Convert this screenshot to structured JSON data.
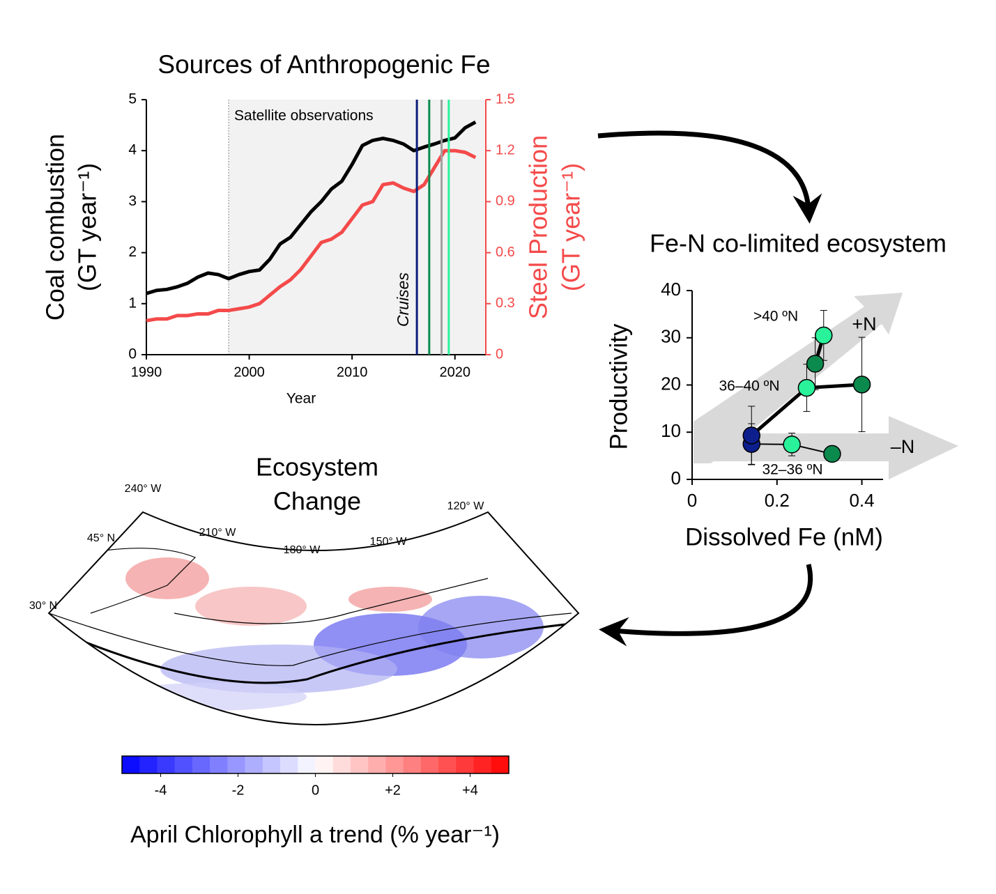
{
  "chart_data": [
    {
      "type": "line",
      "title": "Sources of Anthropogenic Fe",
      "xlabel": "Year",
      "ylabel": [
        "Coal combustion",
        "(GT year⁻¹)"
      ],
      "y2label": [
        "Steel Production",
        "(GT year⁻¹)"
      ],
      "x": [
        1990,
        1991,
        1992,
        1993,
        1994,
        1995,
        1996,
        1997,
        1998,
        1999,
        2000,
        2001,
        2002,
        2003,
        2004,
        2005,
        2006,
        2007,
        2008,
        2009,
        2010,
        2011,
        2012,
        2013,
        2014,
        2015,
        2016,
        2017,
        2018,
        2019,
        2020,
        2021,
        2022
      ],
      "series": [
        {
          "name": "Coal combustion",
          "color": "#000000",
          "axis": "y",
          "values": [
            1.2,
            1.26,
            1.28,
            1.33,
            1.4,
            1.52,
            1.6,
            1.57,
            1.49,
            1.57,
            1.63,
            1.66,
            1.87,
            2.17,
            2.3,
            2.55,
            2.8,
            3.0,
            3.25,
            3.4,
            3.73,
            4.1,
            4.2,
            4.24,
            4.2,
            4.13,
            4.0,
            4.07,
            4.13,
            4.2,
            4.25,
            4.45,
            4.56
          ]
        },
        {
          "name": "Steel Production",
          "color": "#f44a4a",
          "axis": "y2",
          "values": [
            0.2,
            0.21,
            0.21,
            0.23,
            0.23,
            0.24,
            0.24,
            0.26,
            0.26,
            0.27,
            0.28,
            0.3,
            0.35,
            0.4,
            0.44,
            0.5,
            0.58,
            0.66,
            0.68,
            0.72,
            0.8,
            0.88,
            0.9,
            1.0,
            1.01,
            0.98,
            0.96,
            1.0,
            1.1,
            1.2,
            1.2,
            1.19,
            1.16
          ]
        }
      ],
      "xlim": [
        1990,
        2023
      ],
      "xticks": [
        1990,
        2000,
        2010,
        2020
      ],
      "ylim": [
        0,
        5
      ],
      "yticks": [
        0,
        1,
        2,
        3,
        4,
        5
      ],
      "y2lim": [
        0,
        1.5
      ],
      "y2ticks": [
        0,
        0.3,
        0.6,
        0.9,
        1.2,
        1.5
      ],
      "y2color": "#f44a4a",
      "shade": {
        "from": 1998,
        "label": "Satellite observations",
        "color": "#f2f2f2"
      },
      "vlines": [
        {
          "x": 2016.3,
          "color": "#0c1f7a"
        },
        {
          "x": 2017.5,
          "color": "#0b8a4e"
        },
        {
          "x": 2018.7,
          "color": "#a0a0a0"
        },
        {
          "x": 2019.4,
          "color": "#29f29a"
        }
      ],
      "vlines_label": "Cruises"
    },
    {
      "type": "scatter",
      "title": "Fe-N co-limited ecosystem",
      "xlabel": "Dissolved Fe (nM)",
      "ylabel": "Productivity",
      "xlim": [
        0,
        0.45
      ],
      "xticks": [
        0,
        0.2,
        0.4
      ],
      "ylim": [
        0,
        40
      ],
      "yticks": [
        0,
        10,
        20,
        30,
        40
      ],
      "series": [
        {
          "name": "32–36 ºN",
          "line_style": "thin",
          "x": [
            0.14,
            0.235,
            0.33
          ],
          "values": [
            7.5,
            7.4,
            5.4
          ],
          "errors": [
            4.3,
            2.4,
            null
          ],
          "colors": [
            "#0c1f8c",
            "#29f29a",
            "#0b8a4e"
          ]
        },
        {
          "name": "36–40 ºN",
          "line_style": "thick",
          "x": [
            0.14,
            0.27,
            0.4
          ],
          "values": [
            9.3,
            19.4,
            20.1
          ],
          "errors": [
            6.2,
            5.0,
            10.0
          ],
          "colors": [
            "#0c1f8c",
            "#29f29a",
            "#0b8a4e"
          ]
        },
        {
          "name": ">40 ºN",
          "line_style": "thick",
          "x": [
            0.29,
            0.31
          ],
          "values": [
            24.5,
            30.5
          ],
          "errors": [
            5.5,
            5.3
          ],
          "colors": [
            "#0b8a4e",
            "#29f29a"
          ]
        }
      ],
      "annotations": [
        "+N",
        "–N"
      ]
    },
    {
      "type": "map",
      "title": [
        "Ecosystem",
        "Change"
      ],
      "lon_labels": [
        "240° W",
        "210° W",
        "180° W",
        "150° W",
        "120° W"
      ],
      "lat_labels": [
        "45° N",
        "30° N"
      ],
      "colorbar": {
        "label": "April Chlorophyll a trend  (% year⁻¹)",
        "lim": [
          -5,
          5
        ],
        "ticks": [
          -4,
          -2,
          0,
          {
            "value": 2,
            "label": "+2"
          },
          {
            "value": 4,
            "label": "+4"
          }
        ],
        "colormap": [
          "#0000ff",
          "#ffffff",
          "#ff0000"
        ]
      }
    }
  ]
}
